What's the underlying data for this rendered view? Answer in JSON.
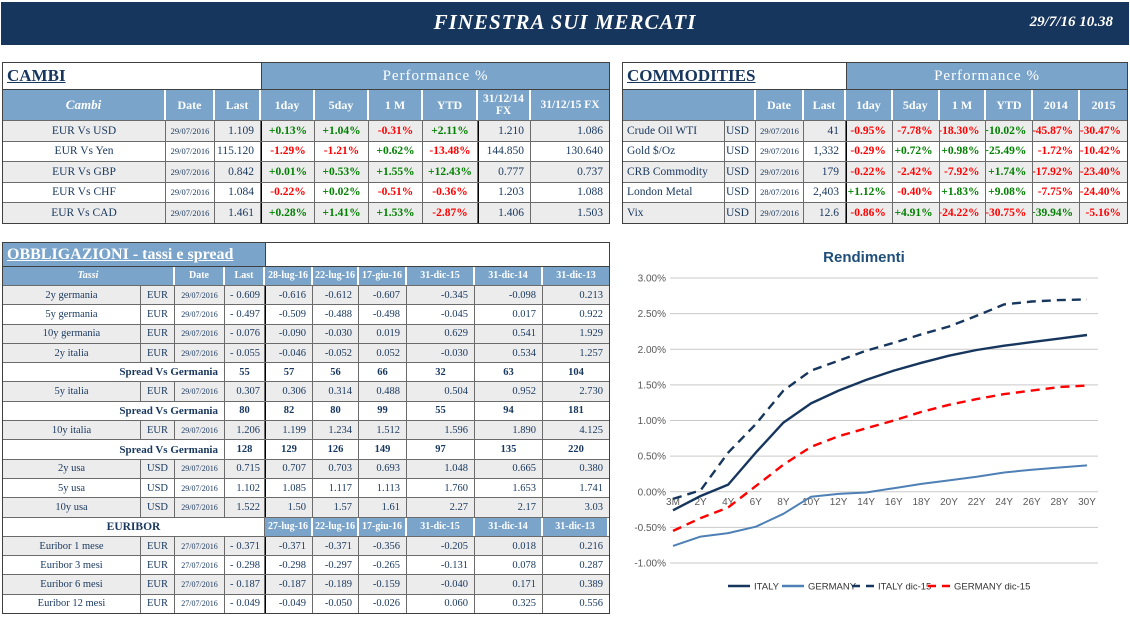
{
  "banner": {
    "title": "FINESTRA SUI MERCATI",
    "datetime": "29/7/16 10.38"
  },
  "colors": {
    "banner_navy": "#17365D",
    "header_blue": "#7AA4CA",
    "row_shaded": "#EDECEC",
    "text_navy": "#17375E",
    "positive": "#008000",
    "negative": "#FF0000",
    "italy_line": "#17365D",
    "germany_line": "#4E80B5",
    "germany_dec_line": "#FF0000",
    "gridline": "#C9C9C9",
    "axis_text": "#595959"
  },
  "cambi": {
    "title": "CAMBI",
    "perf_header": "Performance  %",
    "columns": [
      "Cambi",
      "Date",
      "Last",
      "1day",
      "5day",
      "1 M",
      "YTD",
      "31/12/14 FX",
      "31/12/15  FX"
    ],
    "rows": [
      {
        "name": "EUR Vs USD",
        "date": "29/07/2016",
        "last": "1.109",
        "perf": [
          "+0.13%",
          "+1.04%",
          "-0.31%",
          "+2.11%"
        ],
        "fx14": "1.210",
        "fx15": "1.086",
        "shaded": true
      },
      {
        "name": "EUR Vs Yen",
        "date": "29/07/2016",
        "last": "115.120",
        "perf": [
          "-1.29%",
          "-1.21%",
          "+0.62%",
          "-13.48%"
        ],
        "fx14": "144.850",
        "fx15": "130.640",
        "shaded": false
      },
      {
        "name": "EUR Vs GBP",
        "date": "29/07/2016",
        "last": "0.842",
        "perf": [
          "+0.01%",
          "+0.53%",
          "+1.55%",
          "+12.43%"
        ],
        "fx14": "0.777",
        "fx15": "0.737",
        "shaded": true
      },
      {
        "name": "EUR Vs CHF",
        "date": "29/07/2016",
        "last": "1.084",
        "perf": [
          "-0.22%",
          "+0.02%",
          "-0.51%",
          "-0.36%"
        ],
        "fx14": "1.203",
        "fx15": "1.088",
        "shaded": false
      },
      {
        "name": "EUR Vs CAD",
        "date": "29/07/2016",
        "last": "1.461",
        "perf": [
          "+0.28%",
          "+1.41%",
          "+1.53%",
          "-2.87%"
        ],
        "fx14": "1.406",
        "fx15": "1.503",
        "shaded": true
      }
    ]
  },
  "commodities": {
    "title": "COMMODITIES",
    "perf_header": "Performance  %",
    "columns": [
      "",
      "Date",
      "Last",
      "1day",
      "5day",
      "1 M",
      "YTD",
      "2014",
      "2015"
    ],
    "rows": [
      {
        "name": "Crude Oil WTI",
        "ccy": "USD",
        "date": "29/07/2016",
        "last": "41",
        "perf": [
          "-0.95%",
          "-7.78%",
          "-18.30%",
          "+10.02%",
          "-45.87%",
          "-30.47%"
        ],
        "shaded": true
      },
      {
        "name": "Gold $/Oz",
        "ccy": "USD",
        "date": "29/07/2016",
        "last": "1,332",
        "perf": [
          "-0.29%",
          "+0.72%",
          "+0.98%",
          "+25.49%",
          "-1.72%",
          "-10.42%"
        ],
        "shaded": false
      },
      {
        "name": "CRB Commodity",
        "ccy": "USD",
        "date": "29/07/2016",
        "last": "179",
        "perf": [
          "-0.22%",
          "-2.42%",
          "-7.92%",
          "+1.74%",
          "-17.92%",
          "-23.40%"
        ],
        "shaded": true
      },
      {
        "name": "London Metal",
        "ccy": "USD",
        "date": "28/07/2016",
        "last": "2,403",
        "perf": [
          "+1.12%",
          "-0.40%",
          "+1.83%",
          "+9.08%",
          "-7.75%",
          "-24.40%"
        ],
        "shaded": false
      },
      {
        "name": "Vix",
        "ccy": "USD",
        "date": "29/07/2016",
        "last": "12.6",
        "perf": [
          "-0.86%",
          "+4.91%",
          "-24.22%",
          "-30.75%",
          "+39.94%",
          "-5.16%"
        ],
        "shaded": true
      }
    ]
  },
  "bonds": {
    "title": "OBBLIGAZIONI - tassi e spread",
    "columns": [
      "Tassi",
      "Date",
      "Last",
      "28-lug-16",
      "22-lug-16",
      "17-giu-16",
      "31-dic-15",
      "31-dic-14",
      "31-dic-13"
    ],
    "rows": [
      {
        "type": "rate",
        "name": "2y germania",
        "ccy": "EUR",
        "date": "29/07/2016",
        "sign": "-",
        "last": "0.609",
        "hist": [
          "-0.616",
          "-0.612",
          "-0.607",
          "-0.345",
          "-0.098",
          "0.213"
        ],
        "shaded": true
      },
      {
        "type": "rate",
        "name": "5y germania",
        "ccy": "EUR",
        "date": "29/07/2016",
        "sign": "-",
        "last": "0.497",
        "hist": [
          "-0.509",
          "-0.488",
          "-0.498",
          "-0.045",
          "0.017",
          "0.922"
        ],
        "shaded": false
      },
      {
        "type": "rate",
        "name": "10y germania",
        "ccy": "EUR",
        "date": "29/07/2016",
        "sign": "-",
        "last": "0.076",
        "hist": [
          "-0.090",
          "-0.030",
          "0.019",
          "0.629",
          "0.541",
          "1.929"
        ],
        "shaded": true
      },
      {
        "type": "rate",
        "name": "2y italia",
        "ccy": "EUR",
        "date": "29/07/2016",
        "sign": "-",
        "last": "0.055",
        "hist": [
          "-0.046",
          "-0.052",
          "0.052",
          "-0.030",
          "0.534",
          "1.257"
        ],
        "shaded": true
      },
      {
        "type": "spread",
        "label": "Spread Vs Germania",
        "last": "55",
        "hist": [
          "57",
          "56",
          "66",
          "32",
          "63",
          "104"
        ],
        "shaded": false
      },
      {
        "type": "rate",
        "name": "5y italia",
        "ccy": "EUR",
        "date": "29/07/2016",
        "sign": "",
        "last": "0.307",
        "hist": [
          "0.306",
          "0.314",
          "0.488",
          "0.504",
          "0.952",
          "2.730"
        ],
        "shaded": true
      },
      {
        "type": "spread",
        "label": "Spread Vs Germania",
        "last": "80",
        "hist": [
          "82",
          "80",
          "99",
          "55",
          "94",
          "181"
        ],
        "shaded": false
      },
      {
        "type": "rate",
        "name": "10y italia",
        "ccy": "EUR",
        "date": "29/07/2016",
        "sign": "",
        "last": "1.206",
        "hist": [
          "1.199",
          "1.234",
          "1.512",
          "1.596",
          "1.890",
          "4.125"
        ],
        "shaded": true
      },
      {
        "type": "spread",
        "label": "Spread Vs Germania",
        "last": "128",
        "hist": [
          "129",
          "126",
          "149",
          "97",
          "135",
          "220"
        ],
        "shaded": false
      },
      {
        "type": "rate",
        "name": "2y usa",
        "ccy": "USD",
        "date": "29/07/2016",
        "sign": "",
        "last": "0.715",
        "hist": [
          "0.707",
          "0.703",
          "0.693",
          "1.048",
          "0.665",
          "0.380"
        ],
        "shaded": true
      },
      {
        "type": "rate",
        "name": "5y usa",
        "ccy": "USD",
        "date": "29/07/2016",
        "sign": "",
        "last": "1.102",
        "hist": [
          "1.085",
          "1.117",
          "1.113",
          "1.760",
          "1.653",
          "1.741"
        ],
        "shaded": false
      },
      {
        "type": "rate",
        "name": "10y usa",
        "ccy": "USD",
        "date": "29/07/2016",
        "sign": "",
        "last": "1.522",
        "hist": [
          "1.50",
          "1.57",
          "1.61",
          "2.27",
          "2.17",
          "3.03"
        ],
        "shaded": true
      },
      {
        "type": "subheader",
        "label": "EURIBOR",
        "cols": [
          "27-lug-16",
          "22-lug-16",
          "17-giu-16",
          "31-dic-15",
          "31-dic-14",
          "31-dic-13"
        ],
        "shaded": false
      },
      {
        "type": "rate",
        "name": "Euribor 1 mese",
        "ccy": "EUR",
        "date": "27/07/2016",
        "sign": "-",
        "last": "0.371",
        "hist": [
          "-0.371",
          "-0.371",
          "-0.356",
          "-0.205",
          "0.018",
          "0.216"
        ],
        "shaded": true
      },
      {
        "type": "rate",
        "name": "Euribor 3 mesi",
        "ccy": "EUR",
        "date": "27/07/2016",
        "sign": "-",
        "last": "0.298",
        "hist": [
          "-0.298",
          "-0.297",
          "-0.265",
          "-0.131",
          "0.078",
          "0.287"
        ],
        "shaded": false
      },
      {
        "type": "rate",
        "name": "Euribor 6 mesi",
        "ccy": "EUR",
        "date": "27/07/2016",
        "sign": "-",
        "last": "0.187",
        "hist": [
          "-0.187",
          "-0.189",
          "-0.159",
          "-0.040",
          "0.171",
          "0.389"
        ],
        "shaded": true
      },
      {
        "type": "rate",
        "name": "Euribor 12 mesi",
        "ccy": "EUR",
        "date": "27/07/2016",
        "sign": "-",
        "last": "0.049",
        "hist": [
          "-0.049",
          "-0.050",
          "-0.026",
          "0.060",
          "0.325",
          "0.556"
        ],
        "shaded": false
      }
    ]
  },
  "chart_data": {
    "type": "line",
    "title": "Rendimenti",
    "x": [
      "3M",
      "2Y",
      "4Y",
      "6Y",
      "8Y",
      "10Y",
      "12Y",
      "14Y",
      "16Y",
      "18Y",
      "20Y",
      "22Y",
      "24Y",
      "26Y",
      "28Y",
      "30Y"
    ],
    "ylabel": "",
    "xlabel": "",
    "ylim": [
      -1.0,
      3.0
    ],
    "ytick_step": 0.5,
    "y_format": "percent",
    "grid": true,
    "legend_position": "bottom",
    "series": [
      {
        "name": "ITALY",
        "color": "#17365D",
        "dashed": false,
        "values": [
          -0.26,
          -0.06,
          0.1,
          0.55,
          0.97,
          1.24,
          1.42,
          1.57,
          1.7,
          1.81,
          1.91,
          1.99,
          2.05,
          2.1,
          2.15,
          2.2
        ]
      },
      {
        "name": "GERMANY",
        "color": "#4E80B5",
        "dashed": false,
        "values": [
          -0.76,
          -0.63,
          -0.58,
          -0.49,
          -0.31,
          -0.07,
          -0.03,
          -0.01,
          0.05,
          0.11,
          0.16,
          0.21,
          0.27,
          0.31,
          0.34,
          0.37
        ]
      },
      {
        "name": "ITALY dic-15",
        "color": "#17365D",
        "dashed": true,
        "values": [
          -0.1,
          0.02,
          0.55,
          0.95,
          1.42,
          1.7,
          1.84,
          1.98,
          2.09,
          2.21,
          2.32,
          2.47,
          2.63,
          2.67,
          2.69,
          2.7
        ]
      },
      {
        "name": "GERMANY dic-15",
        "color": "#FF0000",
        "dashed": true,
        "values": [
          -0.55,
          -0.37,
          -0.22,
          0.08,
          0.38,
          0.63,
          0.78,
          0.89,
          1.0,
          1.12,
          1.22,
          1.3,
          1.37,
          1.42,
          1.47,
          1.49
        ]
      }
    ]
  }
}
